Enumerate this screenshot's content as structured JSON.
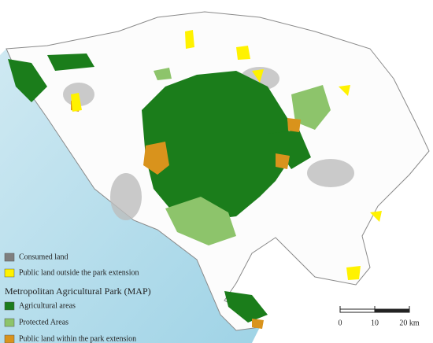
{
  "legend": {
    "items": [
      {
        "label": "Consumed land",
        "color": "#7f7f7f"
      },
      {
        "label": "Public land outside the park extension",
        "color": "#fff200"
      }
    ],
    "group_title": "Metropolitan Agricultural Park (MAP)",
    "group_items": [
      {
        "label": "Agricultural areas",
        "color": "#1b7d1b"
      },
      {
        "label": "Protected Areas",
        "color": "#8dc46b"
      },
      {
        "label": "Public land within the park extension",
        "color": "#d9931c"
      }
    ]
  },
  "scale_bar": {
    "labels": [
      "0",
      "10",
      "20 km"
    ]
  }
}
